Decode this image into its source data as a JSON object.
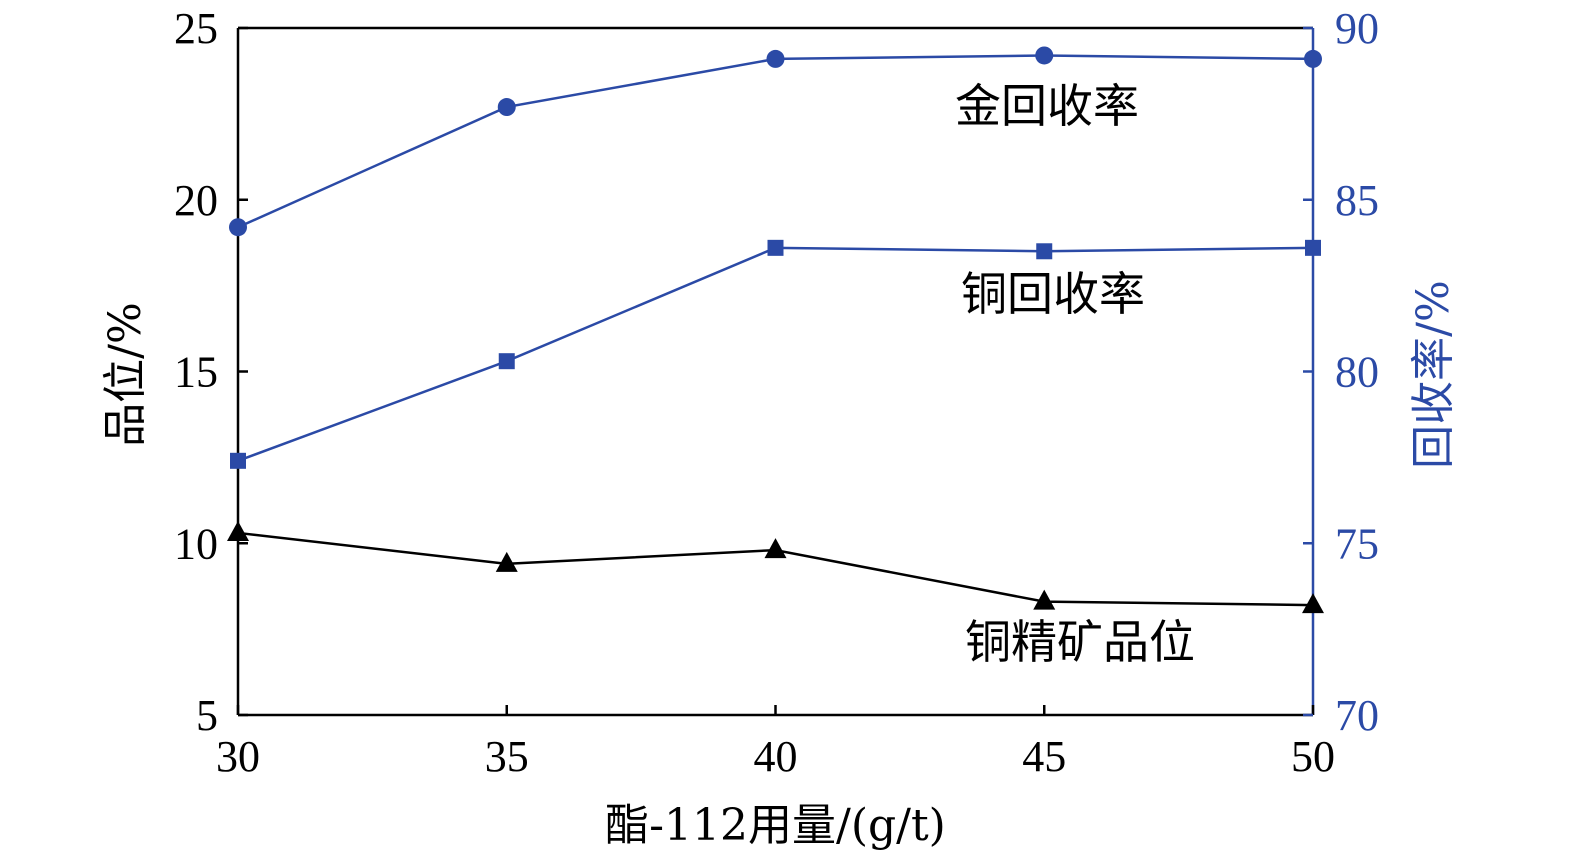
{
  "chart_data": {
    "type": "line",
    "x": [
      30,
      35,
      40,
      45,
      50
    ],
    "xlim": [
      30,
      50
    ],
    "xticks": [
      30,
      35,
      40,
      45,
      50
    ],
    "xlabel": "酯-112用量/(g/t)",
    "y_left": {
      "label": "品位/%",
      "lim": [
        5,
        25
      ],
      "ticks": [
        5,
        10,
        15,
        20,
        25
      ],
      "color": "#000000"
    },
    "y_right": {
      "label": "回收率/%",
      "lim": [
        70,
        90
      ],
      "ticks": [
        70,
        75,
        80,
        85,
        90
      ],
      "color": "#2b4aa6"
    },
    "grid": false,
    "legend": "none",
    "series": [
      {
        "name": "金回收率",
        "axis": "right",
        "marker": "circle",
        "color": "#2b4aa6",
        "values": [
          84.2,
          87.7,
          89.1,
          89.2,
          89.1
        ]
      },
      {
        "name": "铜回收率",
        "axis": "right",
        "marker": "square",
        "color": "#2b4aa6",
        "values": [
          77.4,
          80.3,
          83.6,
          83.5,
          83.6
        ]
      },
      {
        "name": "铜精矿品位",
        "axis": "left",
        "marker": "triangle",
        "color": "#000000",
        "values": [
          10.3,
          9.4,
          9.8,
          8.3,
          8.2
        ]
      }
    ]
  }
}
